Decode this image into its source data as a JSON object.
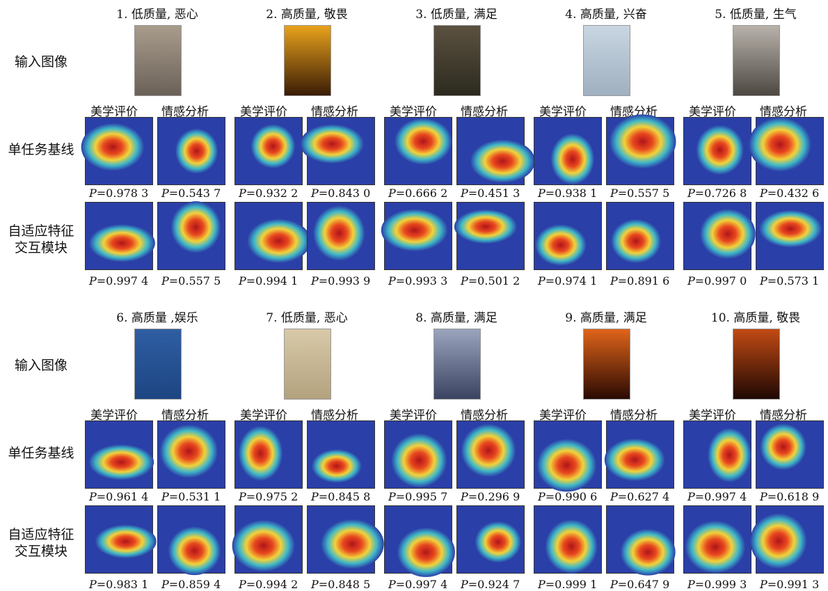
{
  "row_labels": {
    "input": "输入图像",
    "baseline": "单任务基线",
    "adaptive_line1": "自适应特征",
    "adaptive_line2": "交互模块"
  },
  "sub_labels": {
    "aesthetic": "美学评价",
    "emotion": "情感分析"
  },
  "p_prefix": "P",
  "cases": [
    {
      "title": "1. 低质量, 恶心",
      "baseline": [
        "=0.978 3",
        "=0.543 7"
      ],
      "adaptive": [
        "=0.997 4",
        "=0.557 5"
      ],
      "img_colors": [
        "#a89c8c",
        "#6b6158"
      ]
    },
    {
      "title": "2. 高质量, 敬畏",
      "baseline": [
        "=0.932 2",
        "=0.843 0"
      ],
      "adaptive": [
        "=0.994 1",
        "=0.993 9"
      ],
      "img_colors": [
        "#e8a21c",
        "#3a1c05"
      ]
    },
    {
      "title": "3. 低质量, 满足",
      "baseline": [
        "=0.666 2",
        "=0.451 3"
      ],
      "adaptive": [
        "=0.993 3",
        "=0.501 2"
      ],
      "img_colors": [
        "#5b5140",
        "#2c2a1f"
      ]
    },
    {
      "title": "4. 高质量, 兴奋",
      "baseline": [
        "=0.938 1",
        "=0.557 5"
      ],
      "adaptive": [
        "=0.974 1",
        "=0.891 6"
      ],
      "img_colors": [
        "#c9d6e2",
        "#9fb0c0"
      ]
    },
    {
      "title": "5. 低质量, 生气",
      "baseline": [
        "=0.726 8",
        "=0.432 6"
      ],
      "adaptive": [
        "=0.997 0",
        "=0.573 1"
      ],
      "img_colors": [
        "#b8b2ab",
        "#4e4843"
      ]
    },
    {
      "title": "6. 高质量 ,娱乐",
      "baseline": [
        "=0.961 4",
        "=0.531 1"
      ],
      "adaptive": [
        "=0.983 1",
        "=0.859 4"
      ],
      "img_colors": [
        "#2f5ea3",
        "#1d4582"
      ]
    },
    {
      "title": "7. 低质量, 恶心",
      "baseline": [
        "=0.975 2",
        "=0.845 8"
      ],
      "adaptive": [
        "=0.994 2",
        "=0.848 5"
      ],
      "img_colors": [
        "#d8c9a8",
        "#b3a27e"
      ]
    },
    {
      "title": "8. 高质量, 满足",
      "baseline": [
        "=0.995 7",
        "=0.296 9"
      ],
      "adaptive": [
        "=0.997 4",
        "=0.924 7"
      ],
      "img_colors": [
        "#9aa4bd",
        "#3a4462"
      ]
    },
    {
      "title": "9. 高质量, 满足",
      "baseline": [
        "=0.990 6",
        "=0.627 4"
      ],
      "adaptive": [
        "=0.999 1",
        "=0.647 9"
      ],
      "img_colors": [
        "#e0641a",
        "#2a0a02"
      ]
    },
    {
      "title": "10. 高质量, 敬畏",
      "baseline": [
        "=0.997 4",
        "=0.618 9"
      ],
      "adaptive": [
        "=0.999 3",
        "=0.991 3"
      ],
      "img_colors": [
        "#c24a14",
        "#1e0803"
      ]
    }
  ],
  "heat_colors": {
    "bg": "#2b3fa8",
    "mid": "#3fb8c8",
    "warm": "#f2d23a",
    "hot": "#e8471e",
    "core": "#b0141a"
  }
}
